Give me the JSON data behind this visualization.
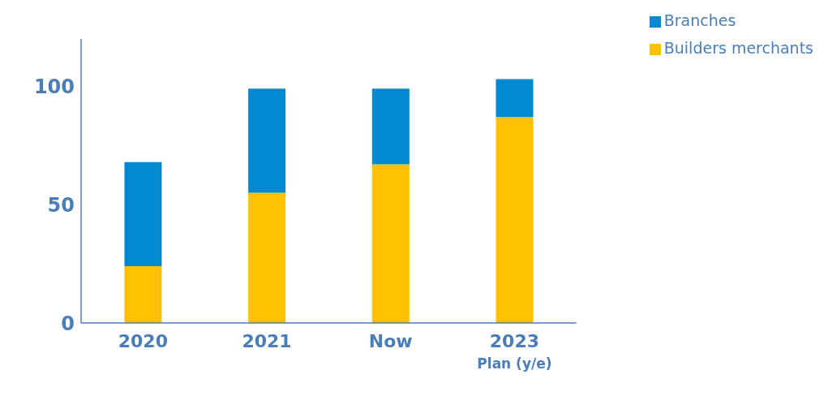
{
  "chart_data": {
    "type": "bar",
    "stacked": true,
    "categories": [
      "2020",
      "2021",
      "Now",
      "2023\nPlan (y/e)"
    ],
    "series": [
      {
        "name": "Builders merchants",
        "color": "#ffc000",
        "values": [
          24,
          55,
          67,
          87
        ]
      },
      {
        "name": "Branches",
        "color": "#0088d1",
        "values": [
          44,
          44,
          32,
          16
        ]
      }
    ],
    "ylim": [
      0,
      120
    ],
    "yticks": [
      0,
      50,
      100
    ],
    "grid": false,
    "legend": "top right"
  }
}
